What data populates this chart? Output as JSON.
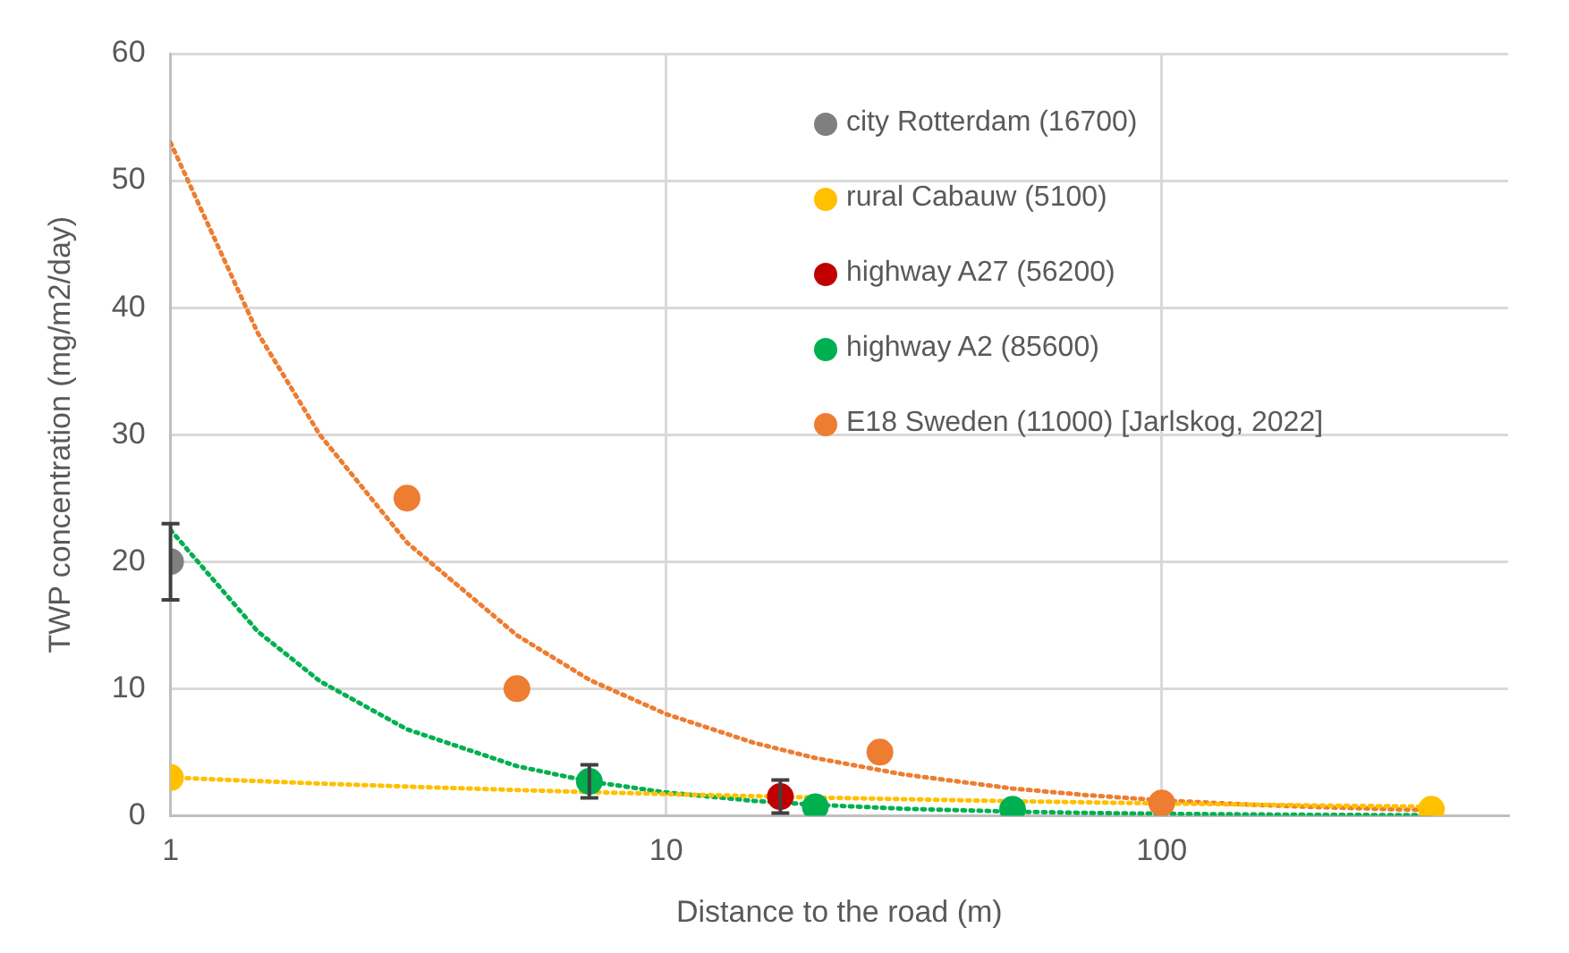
{
  "chart_data": {
    "type": "scatter",
    "xlabel": "Distance to the road (m)",
    "ylabel": "TWP concentration (mg/m2/day)",
    "log": "x",
    "xlim": [
      1,
      500
    ],
    "xticks": [
      1,
      10,
      100
    ],
    "ylim": [
      0,
      60
    ],
    "yticks": [
      0,
      10,
      20,
      30,
      40,
      50,
      60
    ],
    "grid": true,
    "legend": "top right",
    "marker": "circle",
    "series": [
      {
        "name": "city Rotterdam (16700)",
        "color": "#7f7f7f",
        "x": [
          1
        ],
        "values": [
          20
        ],
        "errors": [
          3
        ]
      },
      {
        "name": "rural Cabauw (5100)",
        "color": "#ffc000",
        "x": [
          1,
          350
        ],
        "values": [
          3,
          0.5
        ]
      },
      {
        "name": "highway A27 (56200)",
        "color": "#c00000",
        "x": [
          17
        ],
        "values": [
          1.5
        ],
        "errors": [
          1.3
        ]
      },
      {
        "name": "highway A2 (85600)",
        "color": "#00b050",
        "x": [
          7,
          20,
          50
        ],
        "values": [
          2.7,
          0.7,
          0.5
        ],
        "errors": [
          1.3,
          null,
          null
        ]
      },
      {
        "name": "E18 Sweden (11000) [Jarlskog, 2022]",
        "color": "#ed7d31",
        "x": [
          3,
          5,
          27,
          100
        ],
        "values": [
          25,
          10,
          5,
          1
        ]
      },
      {
        "type": "line",
        "line_style": "dotted",
        "marker": "none",
        "color": "#ffc000",
        "x": [
          1,
          2,
          3,
          5,
          10,
          20,
          50,
          100,
          200,
          350
        ],
        "values": [
          3,
          2.53,
          2.29,
          2.02,
          1.7,
          1.43,
          1.14,
          0.96,
          0.81,
          0.71
        ]
      },
      {
        "type": "line",
        "line_style": "dotted",
        "marker": "none",
        "color": "#00b050",
        "x": [
          1,
          1.5,
          2,
          3,
          5,
          7,
          10,
          15,
          20,
          30,
          50,
          70,
          100,
          150,
          200,
          350
        ],
        "values": [
          22.5,
          14.5,
          10.6,
          6.8,
          3.9,
          2.7,
          1.83,
          1.17,
          0.86,
          0.55,
          0.32,
          0.22,
          0.15,
          0.1,
          0.07,
          0.04
        ]
      },
      {
        "type": "line",
        "line_style": "dotted",
        "marker": "none",
        "color": "#ed7d31",
        "x": [
          1,
          1.5,
          2,
          3,
          5,
          7,
          10,
          15,
          20,
          30,
          50,
          70,
          100,
          150,
          200,
          300,
          350
        ],
        "values": [
          53,
          38,
          30,
          21.5,
          14.2,
          10.7,
          8,
          5.75,
          4.54,
          3.26,
          2.14,
          1.63,
          1.21,
          0.87,
          0.69,
          0.49,
          0.44
        ]
      }
    ]
  }
}
